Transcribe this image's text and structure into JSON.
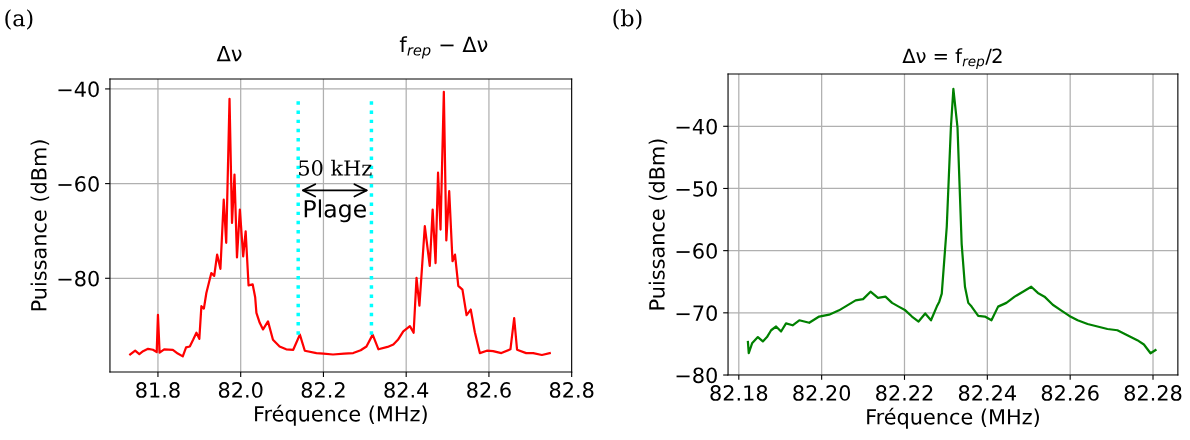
{
  "chart_data": [
    {
      "type": "line",
      "xlabel": "Fréquence (MHz)",
      "ylabel": "Puissance (dBm)",
      "xlim": [
        81.684,
        82.8
      ],
      "ylim": [
        -99.8,
        -37.9
      ],
      "xticks": [
        81.8,
        {
          "value": 82.0,
          "label": "82.0"
        },
        82.2,
        82.4,
        82.6,
        82.8
      ],
      "yticks": [
        -40,
        -60,
        -80
      ],
      "grid": true,
      "annotations": [
        "(a)",
        {
          "text": "Δν",
          "x": 81.973,
          "y": -42.1
        },
        {
          "text": "f$_{rep}$ − Δν",
          "x": 82.491,
          "y": -40.6
        },
        "50 kHz",
        "Plage"
      ],
      "series": [
        {
          "color": "#ff0000",
          "x": [
            81.733,
            81.745,
            81.755,
            81.764,
            81.776,
            81.788,
            81.797,
            81.8,
            81.804,
            81.815,
            81.836,
            81.848,
            81.86,
            81.868,
            81.877,
            81.885,
            81.893,
            81.9,
            81.905,
            81.911,
            81.917,
            81.923,
            81.929,
            81.936,
            81.943,
            81.951,
            81.959,
            81.965,
            81.973,
            81.979,
            81.985,
            81.991,
            81.998,
            82.006,
            82.012,
            82.019,
            82.029,
            82.035,
            82.038,
            82.046,
            82.054,
            82.066,
            82.078,
            82.094,
            82.11,
            82.127,
            82.143,
            82.155,
            82.183,
            82.2,
            82.223,
            82.25,
            82.272,
            82.29,
            82.304,
            82.319,
            82.333,
            82.355,
            82.369,
            82.38,
            82.393,
            82.409,
            82.418,
            82.425,
            82.432,
            82.445,
            82.457,
            82.464,
            82.471,
            82.477,
            82.483,
            82.491,
            82.497,
            82.504,
            82.512,
            82.518,
            82.526,
            82.536,
            82.546,
            82.556,
            82.566,
            82.578,
            82.595,
            82.61,
            82.63,
            82.652,
            82.661,
            82.668,
            82.69,
            82.707,
            82.728,
            82.747
          ],
          "values": [
            -96.1,
            -95.3,
            -96.0,
            -95.4,
            -94.9,
            -95.1,
            -95.6,
            -87.7,
            -95.7,
            -95.0,
            -95.1,
            -95.9,
            -96.5,
            -94.6,
            -94.4,
            -93.0,
            -91.5,
            -92.8,
            -85.9,
            -86.4,
            -83.1,
            -81.0,
            -78.9,
            -79.5,
            -75.0,
            -78.0,
            -63.4,
            -72.5,
            -42.1,
            -68.3,
            -58.1,
            -75.6,
            -65.5,
            -75.4,
            -70.1,
            -81.5,
            -81.3,
            -84.0,
            -87.3,
            -89.4,
            -90.8,
            -89.1,
            -93.0,
            -94.4,
            -95.0,
            -95.1,
            -91.9,
            -95.3,
            -95.8,
            -95.9,
            -96.1,
            -95.9,
            -95.8,
            -95.2,
            -94.4,
            -91.9,
            -95.0,
            -94.5,
            -94.0,
            -93.0,
            -91.2,
            -90.1,
            -91.5,
            -79.9,
            -85.8,
            -69.0,
            -77.4,
            -65.5,
            -76.8,
            -57.7,
            -69.7,
            -40.6,
            -72.0,
            -61.6,
            -76.4,
            -75.0,
            -81.6,
            -82.4,
            -87.8,
            -86.6,
            -91.4,
            -95.8,
            -95.3,
            -95.4,
            -95.8,
            -95.0,
            -88.4,
            -95.1,
            -95.8,
            -95.8,
            -96.2,
            -95.8
          ]
        },
        {
          "color": "#00ffff",
          "line_style": "dotted",
          "x": [
            82.139,
            82.139
          ],
          "values": [
            -42.6,
            -92.3
          ]
        },
        {
          "color": "#00ffff",
          "line_style": "dotted",
          "x": [
            82.316,
            82.316
          ],
          "values": [
            -42.6,
            -92.3
          ]
        }
      ]
    },
    {
      "type": "line",
      "title": "Δν = f$_{rep}$/2",
      "xlabel": "Fréquence (MHz)",
      "ylabel": "Puissance (dBm)",
      "xlim": [
        82.1774,
        82.286
      ],
      "ylim": [
        -80,
        -31.6
      ],
      "xticks": [
        {
          "value": 82.18,
          "label": "82.18"
        },
        {
          "value": 82.2,
          "label": "82.20"
        },
        {
          "value": 82.22,
          "label": "82.22"
        },
        {
          "value": 82.24,
          "label": "82.24"
        },
        {
          "value": 82.26,
          "label": "82.26"
        },
        {
          "value": 82.28,
          "label": "82.28"
        }
      ],
      "yticks": [
        -40,
        -50,
        -60,
        -70,
        -80
      ],
      "grid": true,
      "annotations": [
        "(b)"
      ],
      "series": [
        {
          "color": "#008000",
          "x": [
            82.1822,
            82.1824,
            82.1832,
            82.1846,
            82.1858,
            82.1868,
            82.1878,
            82.189,
            82.1902,
            82.1914,
            82.193,
            82.1946,
            82.197,
            82.1994,
            82.2018,
            82.2042,
            82.2062,
            82.2082,
            82.21,
            82.2118,
            82.2136,
            82.2154,
            82.217,
            82.2186,
            82.2202,
            82.2218,
            82.2234,
            82.225,
            82.2264,
            82.2278,
            82.2284,
            82.229,
            82.2302,
            82.2312,
            82.2318,
            82.2328,
            82.2338,
            82.2346,
            82.2354,
            82.2362,
            82.2378,
            82.2394,
            82.241,
            82.2426,
            82.2446,
            82.2466,
            82.2486,
            82.2506,
            82.2522,
            82.2538,
            82.2558,
            82.2578,
            82.2598,
            82.2618,
            82.2642,
            82.2666,
            82.269,
            82.2714,
            82.2738,
            82.2762,
            82.2778,
            82.2794,
            82.2806
          ],
          "values": [
            -74.7,
            -76.5,
            -74.9,
            -73.9,
            -74.6,
            -73.9,
            -72.8,
            -72.2,
            -73.0,
            -71.7,
            -72.0,
            -71.2,
            -71.6,
            -70.6,
            -70.3,
            -69.6,
            -68.8,
            -68.0,
            -67.8,
            -66.6,
            -67.6,
            -67.4,
            -68.4,
            -69.0,
            -69.6,
            -70.6,
            -71.4,
            -70.1,
            -71.2,
            -69.0,
            -68.2,
            -66.9,
            -56.2,
            -40.2,
            -34.0,
            -40.2,
            -58.9,
            -65.8,
            -68.4,
            -69.0,
            -70.5,
            -70.6,
            -71.2,
            -69.0,
            -68.4,
            -67.4,
            -66.6,
            -65.8,
            -66.8,
            -67.4,
            -68.7,
            -69.6,
            -70.5,
            -71.2,
            -71.8,
            -72.2,
            -72.6,
            -72.8,
            -73.6,
            -74.4,
            -75.1,
            -76.5,
            -76.0
          ]
        }
      ]
    }
  ]
}
